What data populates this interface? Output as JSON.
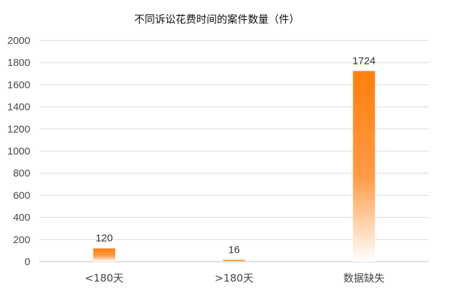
{
  "chart_data": {
    "type": "bar",
    "title": "不同诉讼花费时间的案件数量（件）",
    "categories": [
      "<180天",
      ">180天",
      "数据缺失"
    ],
    "values": [
      120,
      16,
      1724
    ],
    "data_labels": [
      "120",
      "16",
      "1724"
    ],
    "ylim": [
      0,
      2000
    ],
    "yticks": [
      0,
      200,
      400,
      600,
      800,
      1000,
      1200,
      1400,
      1600,
      1800,
      2000
    ],
    "grid": true,
    "legend": "none",
    "colors": {
      "bar_top": "#ff7f0e",
      "bar_bottom": "#ffffff",
      "grid": "#d9d9d9"
    }
  }
}
